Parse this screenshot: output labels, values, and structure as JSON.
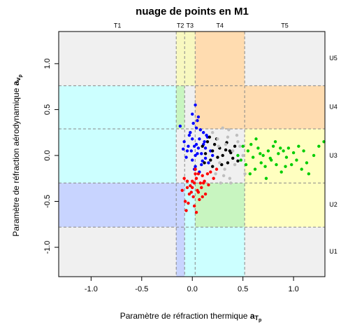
{
  "chart_data": {
    "type": "scatter",
    "title": "nuage de points en M1",
    "x_label": "Paramètre de réfraction thermique",
    "x_symbol": "a",
    "x_sub": "T",
    "x_subsub": "p",
    "y_label": "Paramètre de réfraction aérodynamique",
    "y_symbol": "a",
    "y_sub": "v",
    "y_subsub": "p",
    "xlim": [
      -1.32,
      1.31
    ],
    "ylim": [
      -1.32,
      1.35
    ],
    "xticks": [
      {
        "value": -1,
        "label": "-1.0"
      },
      {
        "value": -0.5,
        "label": "-0.5"
      },
      {
        "value": 0,
        "label": "0.0"
      },
      {
        "value": 0.5,
        "label": "0.5"
      },
      {
        "value": 1,
        "label": "1.0"
      }
    ],
    "yticks": [
      {
        "value": -1,
        "label": "-1.0"
      },
      {
        "value": -0.5,
        "label": "-0.5"
      },
      {
        "value": 0,
        "label": "0.0"
      },
      {
        "value": 0.5,
        "label": "0.5"
      },
      {
        "value": 1,
        "label": "1.0"
      }
    ],
    "x_thresholds": [
      -0.159,
      -0.076,
      0.028,
      0.517
    ],
    "y_thresholds": [
      -0.78,
      -0.3,
      0.29,
      0.76
    ],
    "x_zones": [
      "T1",
      "T2",
      "T3",
      "T4",
      "T5"
    ],
    "y_zones": [
      "U1",
      "U2",
      "U3",
      "U4",
      "U5"
    ],
    "series": [
      {
        "color": "#0000ff",
        "x": [
          -0.12,
          -0.08,
          -0.05,
          -0.03,
          0.0,
          0.02,
          0.04,
          0.05,
          0.07,
          0.09,
          0.11,
          0.13,
          0.15,
          0.18,
          0.2,
          -0.06,
          -0.02,
          0.01,
          0.03,
          0.06,
          0.08,
          0.1,
          0.12,
          0.14,
          0.16,
          -0.04,
          0.0,
          0.03,
          0.05,
          0.09,
          0.02,
          0.04,
          -0.01,
          0.07,
          0.11,
          0.0,
          0.06,
          0.03,
          -0.09,
          0.13
        ],
        "values": [
          0.32,
          0.15,
          0.05,
          0.22,
          -0.05,
          0.1,
          0.3,
          0.02,
          0.18,
          -0.1,
          0.12,
          0.08,
          0.2,
          0.05,
          0.0,
          -0.02,
          0.25,
          0.35,
          -0.12,
          0.08,
          0.28,
          -0.06,
          0.15,
          0.22,
          -0.08,
          0.1,
          0.45,
          0.55,
          0.38,
          0.02,
          -0.15,
          0.12,
          0.05,
          -0.18,
          0.25,
          0.18,
          0.42,
          0.0,
          0.07,
          -0.03
        ]
      },
      {
        "color": "#ff0000",
        "x": [
          -0.1,
          -0.07,
          -0.05,
          -0.03,
          0.0,
          0.02,
          0.04,
          0.06,
          0.08,
          0.1,
          0.12,
          0.15,
          0.18,
          0.21,
          0.24,
          -0.06,
          -0.02,
          0.01,
          0.03,
          0.05,
          0.07,
          0.09,
          0.11,
          0.13,
          -0.08,
          -0.04,
          0.0,
          0.04,
          0.06,
          0.02,
          -0.01,
          0.1,
          0.16,
          0.03,
          -0.05
        ],
        "values": [
          -0.38,
          -0.5,
          -0.28,
          -0.42,
          -0.35,
          -0.55,
          -0.25,
          -0.4,
          -0.3,
          -0.22,
          -0.28,
          -0.2,
          -0.18,
          -0.25,
          -0.15,
          -0.6,
          -0.33,
          -0.45,
          -0.2,
          -0.38,
          -0.48,
          -0.35,
          -0.3,
          -0.42,
          -0.25,
          -0.52,
          -0.28,
          -0.62,
          -0.2,
          -0.3,
          -0.4,
          -0.45,
          -0.32,
          -0.15,
          -0.35
        ]
      },
      {
        "color": "#000000",
        "x": [
          0.1,
          0.13,
          0.15,
          0.18,
          0.2,
          0.22,
          0.25,
          0.27,
          0.3,
          0.33,
          0.35,
          0.38,
          0.4,
          0.42,
          0.45,
          0.17,
          0.24,
          0.29,
          0.34,
          0.2,
          0.12,
          0.37
        ],
        "values": [
          0.1,
          0.02,
          0.15,
          -0.05,
          0.05,
          0.12,
          -0.02,
          0.08,
          0.0,
          0.06,
          -0.08,
          0.03,
          -0.03,
          0.1,
          -0.06,
          0.2,
          0.18,
          -0.1,
          0.14,
          -0.12,
          -0.08,
          0.05
        ]
      },
      {
        "color": "#bebebe",
        "x": [
          0.2,
          0.23,
          0.26,
          0.28,
          0.3,
          0.32,
          0.35,
          0.37,
          0.4,
          0.42,
          0.45,
          0.48,
          0.5,
          0.52,
          0.27,
          0.33,
          0.38,
          0.44,
          0.25,
          0.31,
          0.36,
          0.47
        ],
        "values": [
          0.25,
          -0.2,
          0.1,
          -0.3,
          0.3,
          -0.15,
          0.2,
          -0.25,
          0.05,
          -0.1,
          0.15,
          -0.05,
          0.0,
          -0.2,
          -0.08,
          0.12,
          -0.3,
          0.22,
          0.18,
          -0.22,
          0.28,
          0.1
        ]
      },
      {
        "color": "#00cd00",
        "x": [
          0.45,
          0.48,
          0.5,
          0.53,
          0.55,
          0.58,
          0.6,
          0.62,
          0.65,
          0.68,
          0.7,
          0.72,
          0.75,
          0.78,
          0.8,
          0.83,
          0.85,
          0.88,
          0.9,
          0.93,
          0.95,
          0.98,
          1.0,
          1.03,
          1.05,
          1.08,
          1.1,
          1.13,
          1.15,
          1.2,
          1.25,
          1.3,
          0.57,
          0.63,
          0.73,
          0.82,
          0.92,
          0.67,
          0.77,
          0.87
        ],
        "values": [
          0.0,
          -0.05,
          0.1,
          -0.1,
          0.05,
          0.12,
          -0.02,
          -0.15,
          0.08,
          -0.08,
          0.0,
          -0.12,
          0.05,
          -0.05,
          0.1,
          -0.1,
          0.02,
          -0.18,
          0.05,
          -0.02,
          0.08,
          -0.1,
          0.03,
          -0.05,
          0.1,
          -0.15,
          0.05,
          -0.08,
          -0.2,
          0.0,
          0.1,
          0.15,
          -0.2,
          0.18,
          -0.25,
          0.15,
          -0.12,
          0.02,
          -0.03,
          0.08
        ]
      }
    ]
  }
}
